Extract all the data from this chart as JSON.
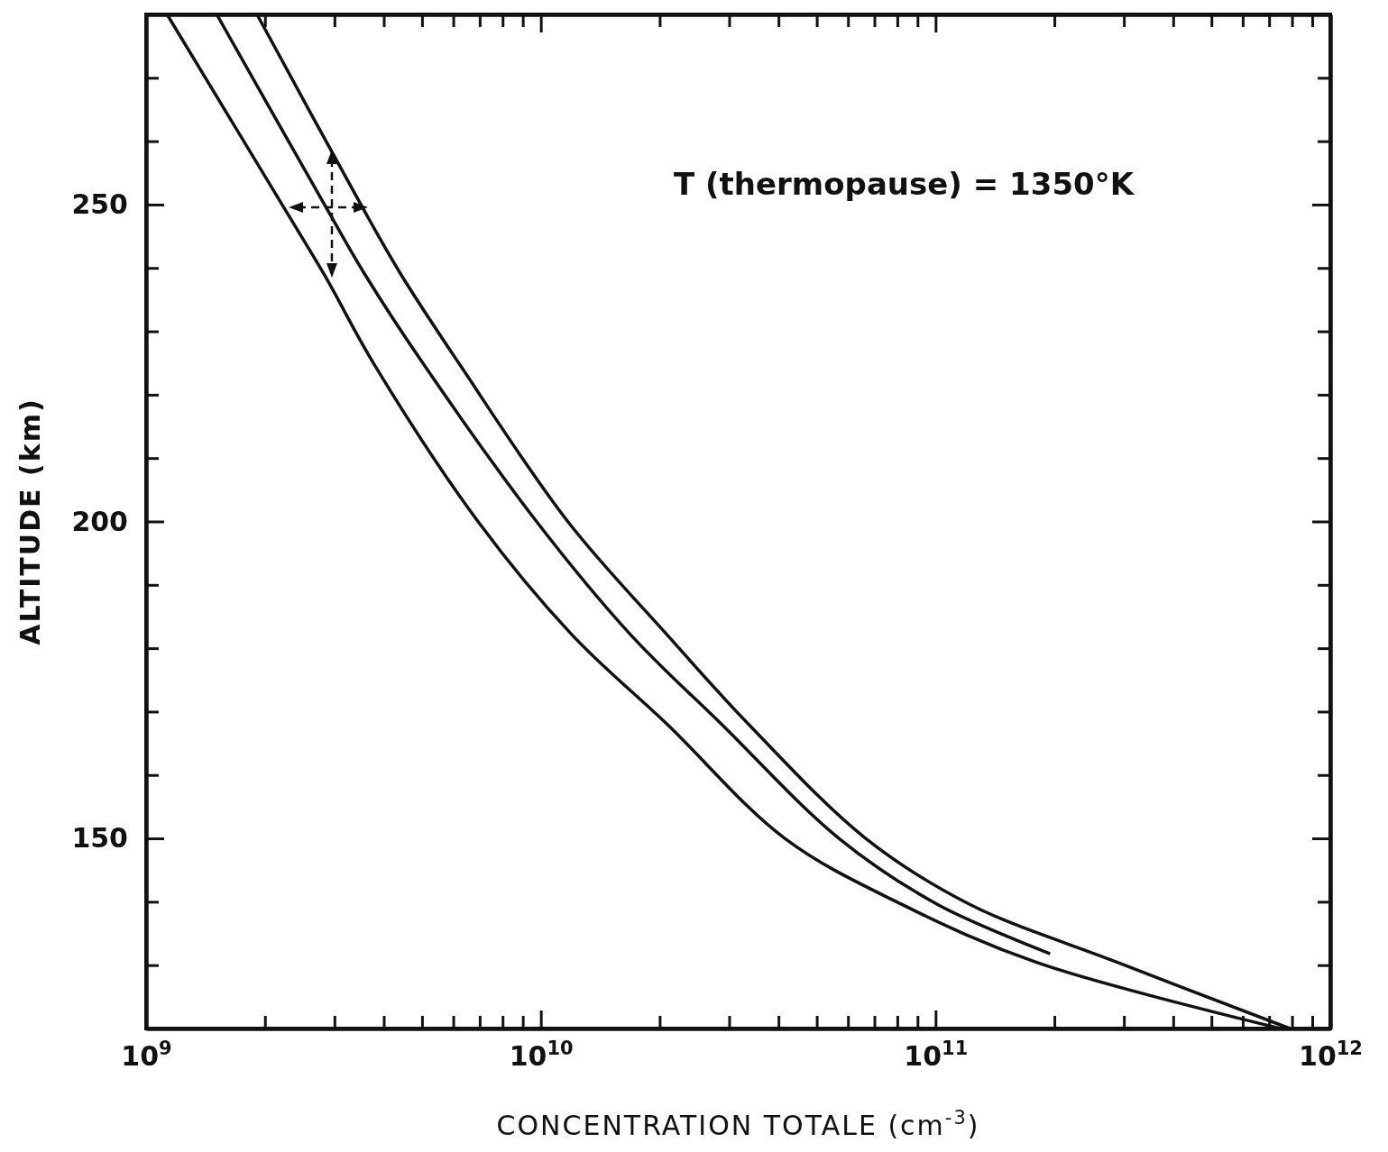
{
  "chart_data": {
    "type": "line",
    "xlabel": "CONCENTRATION TOTALE (cm$^{-3}$)",
    "ylabel": "ALTITUDE (km)",
    "annotations": [
      "T (thermopause) = 1350°K"
    ],
    "log": "x",
    "grid": false,
    "marker": "none",
    "line_style": "solid",
    "xlim": [
      1000000000,
      1000000000000
    ],
    "ylim": [
      120,
      280
    ],
    "xticks": [
      {
        "value": 1000000000,
        "label": "10$^{9}$"
      },
      {
        "value": 2000000000,
        "label": null
      },
      {
        "value": 3000000000,
        "label": null
      },
      {
        "value": 4000000000,
        "label": null
      },
      {
        "value": 5000000000,
        "label": null
      },
      {
        "value": 6000000000,
        "label": null
      },
      {
        "value": 7000000000,
        "label": null
      },
      {
        "value": 8000000000,
        "label": null
      },
      {
        "value": 9000000000,
        "label": null
      },
      {
        "value": 10000000000,
        "label": "10$^{10}$"
      },
      {
        "value": 20000000000,
        "label": null
      },
      {
        "value": 30000000000,
        "label": null
      },
      {
        "value": 40000000000,
        "label": null
      },
      {
        "value": 50000000000,
        "label": null
      },
      {
        "value": 60000000000,
        "label": null
      },
      {
        "value": 70000000000,
        "label": null
      },
      {
        "value": 80000000000,
        "label": null
      },
      {
        "value": 90000000000,
        "label": null
      },
      {
        "value": 100000000000,
        "label": "10$^{11}$"
      },
      {
        "value": 200000000000,
        "label": null
      },
      {
        "value": 300000000000,
        "label": null
      },
      {
        "value": 400000000000,
        "label": null
      },
      {
        "value": 500000000000,
        "label": null
      },
      {
        "value": 600000000000,
        "label": null
      },
      {
        "value": 700000000000,
        "label": null
      },
      {
        "value": 800000000000,
        "label": null
      },
      {
        "value": 900000000000,
        "label": null
      },
      {
        "value": 1000000000000,
        "label": "10$^{12}$"
      }
    ],
    "yticks": [
      {
        "value": 130,
        "label": null
      },
      {
        "value": 140,
        "label": null
      },
      150,
      {
        "value": 160,
        "label": null
      },
      {
        "value": 170,
        "label": null
      },
      {
        "value": 180,
        "label": null
      },
      {
        "value": 190,
        "label": null
      },
      200,
      {
        "value": 210,
        "label": null
      },
      {
        "value": 220,
        "label": null
      },
      {
        "value": 230,
        "label": null
      },
      {
        "value": 240,
        "label": null
      },
      250,
      {
        "value": 260,
        "label": null
      },
      {
        "value": 270,
        "label": null
      }
    ],
    "series": [
      {
        "color": "#111111",
        "x": [
          1130000000,
          2210000000,
          2830000000,
          3790000000,
          6930000000,
          12000000000,
          20900000000,
          41500000000,
          82000000000,
          181000000000,
          748000000000
        ],
        "values": [
          280,
          250,
          238.9,
          224.7,
          200,
          182.1,
          168,
          150,
          139.6,
          130.4,
          120
        ]
      },
      {
        "color": "#111111",
        "x": [
          1510000000,
          2830000000,
          3590000000,
          5060000000,
          9750000000,
          16900000000,
          28700000000,
          56900000000,
          101000000000,
          195000000000
        ],
        "values": [
          280,
          250,
          238.9,
          224.7,
          200,
          182.1,
          168,
          150,
          139.6,
          131.8
        ]
      },
      {
        "color": "#111111",
        "x": [
          1910000000,
          3500000000,
          4430000000,
          6240000000,
          11700000000,
          20900000000,
          33600000000,
          66500000000,
          122000000000,
          290000000000,
          790000000000
        ],
        "values": [
          280,
          250,
          238.9,
          224.7,
          200,
          182.1,
          168,
          150,
          139.6,
          130.4,
          120
        ]
      }
    ]
  }
}
